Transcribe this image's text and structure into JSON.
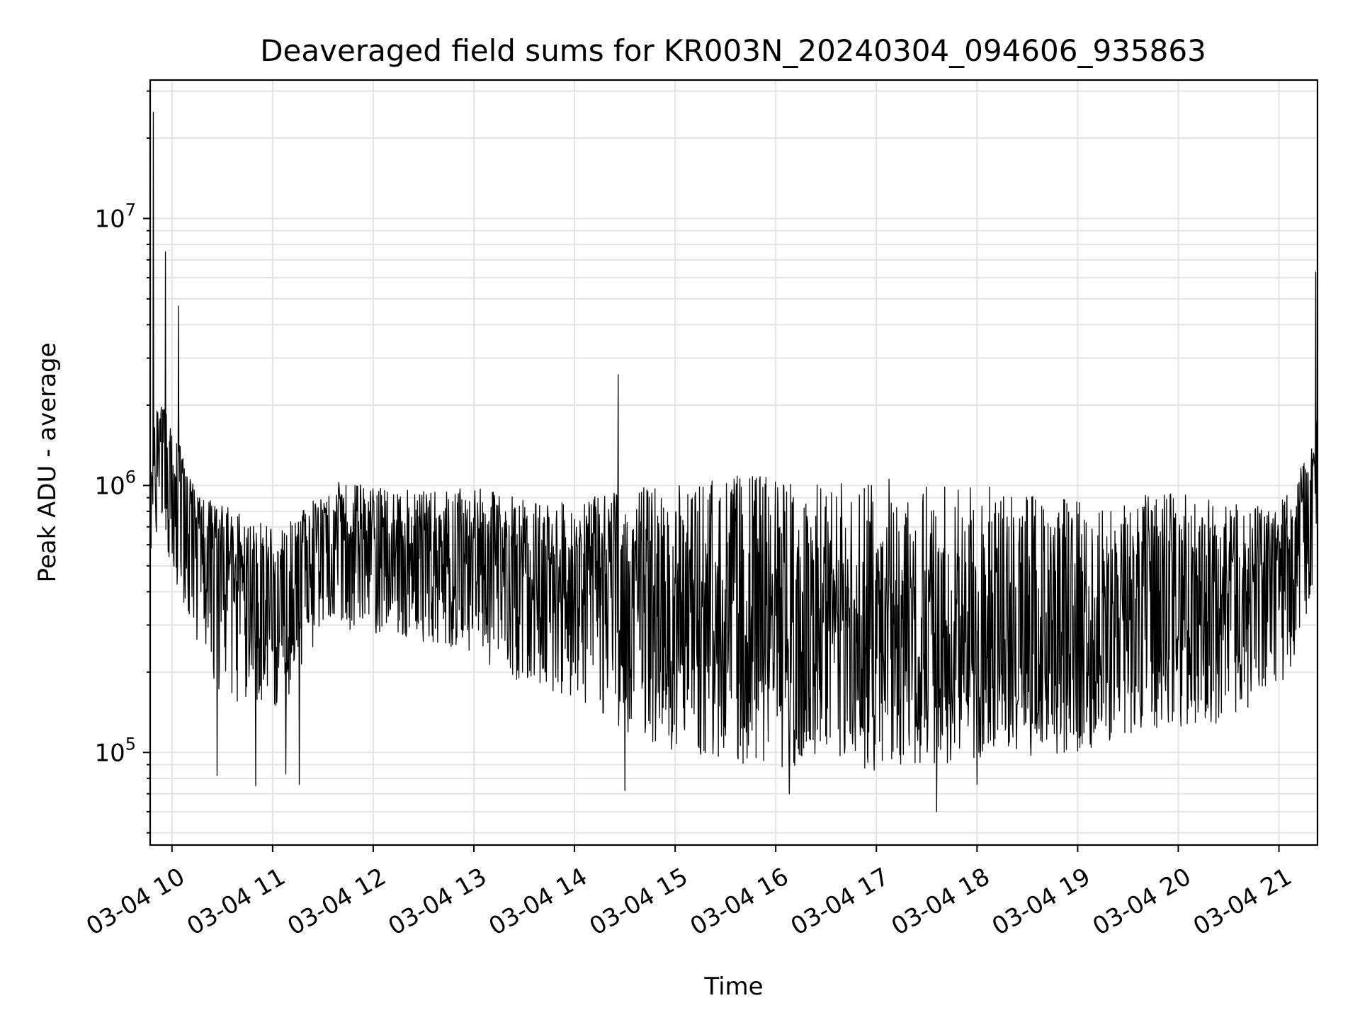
{
  "chart_data": {
    "type": "line",
    "title": "Deaveraged field sums for KR003N_20240304_094606_935863",
    "xlabel": "Time",
    "ylabel": "Peak ADU - average",
    "yscale": "log",
    "xlim": [
      "2024-03-04 09:47",
      "2024-03-04 21:23"
    ],
    "ylim": [
      45000,
      33000000
    ],
    "grid": true,
    "legend": "none",
    "line_color": "#000000",
    "x_ticks": [
      {
        "value": "2024-03-04 10:00",
        "label": "03-04 10"
      },
      {
        "value": "2024-03-04 11:00",
        "label": "03-04 11"
      },
      {
        "value": "2024-03-04 12:00",
        "label": "03-04 12"
      },
      {
        "value": "2024-03-04 13:00",
        "label": "03-04 13"
      },
      {
        "value": "2024-03-04 14:00",
        "label": "03-04 14"
      },
      {
        "value": "2024-03-04 15:00",
        "label": "03-04 15"
      },
      {
        "value": "2024-03-04 16:00",
        "label": "03-04 16"
      },
      {
        "value": "2024-03-04 17:00",
        "label": "03-04 17"
      },
      {
        "value": "2024-03-04 18:00",
        "label": "03-04 18"
      },
      {
        "value": "2024-03-04 19:00",
        "label": "03-04 19"
      },
      {
        "value": "2024-03-04 20:00",
        "label": "03-04 20"
      },
      {
        "value": "2024-03-04 21:00",
        "label": "03-04 21"
      }
    ],
    "y_ticks": [
      {
        "value": 100000,
        "mantissa": "10",
        "exponent": "5"
      },
      {
        "value": 1000000,
        "mantissa": "10",
        "exponent": "6"
      },
      {
        "value": 10000000,
        "mantissa": "10",
        "exponent": "7"
      }
    ],
    "series": [
      {
        "x": [
          "2024-03-04 09:47",
          "2024-03-04 09:50",
          "2024-03-04 09:55",
          "2024-03-04 10:00",
          "2024-03-04 10:05",
          "2024-03-04 10:10",
          "2024-03-04 10:20",
          "2024-03-04 10:30",
          "2024-03-04 10:45",
          "2024-03-04 11:00",
          "2024-03-04 11:15",
          "2024-03-04 11:30",
          "2024-03-04 12:00",
          "2024-03-04 12:30",
          "2024-03-04 13:00",
          "2024-03-04 13:30",
          "2024-03-04 14:00",
          "2024-03-04 14:30",
          "2024-03-04 15:00",
          "2024-03-04 15:30",
          "2024-03-04 16:00",
          "2024-03-04 16:30",
          "2024-03-04 17:00",
          "2024-03-04 17:30",
          "2024-03-04 18:00",
          "2024-03-04 18:30",
          "2024-03-04 19:00",
          "2024-03-04 19:30",
          "2024-03-04 20:00",
          "2024-03-04 20:30",
          "2024-03-04 21:00",
          "2024-03-04 21:10",
          "2024-03-04 21:20",
          "2024-03-04 21:23"
        ],
        "y": [
          650000,
          1300000,
          1400000,
          1000000,
          950000,
          850000,
          600000,
          550000,
          450000,
          420000,
          450000,
          700000,
          600000,
          550000,
          620000,
          520000,
          480000,
          420000,
          340000,
          300000,
          280000,
          270000,
          260000,
          250000,
          250000,
          260000,
          280000,
          320000,
          380000,
          380000,
          420000,
          700000,
          1100000,
          1300000
        ],
        "y_low": [
          500000,
          650000,
          700000,
          450000,
          350000,
          300000,
          220000,
          160000,
          150000,
          140000,
          180000,
          300000,
          280000,
          260000,
          230000,
          180000,
          160000,
          120000,
          100000,
          92000,
          88000,
          85000,
          85000,
          90000,
          92000,
          96000,
          100000,
          115000,
          125000,
          130000,
          160000,
          230000,
          380000,
          480000
        ],
        "y_high": [
          900000,
          2100000,
          2000000,
          1600000,
          1400000,
          1100000,
          900000,
          850000,
          780000,
          700000,
          750000,
          1050000,
          1000000,
          950000,
          980000,
          900000,
          850000,
          1000000,
          1000000,
          1100000,
          1100000,
          1000000,
          1100000,
          1050000,
          1000000,
          950000,
          900000,
          900000,
          950000,
          850000,
          850000,
          1050000,
          1500000,
          2000000
        ],
        "spikes": [
          {
            "x": "2024-03-04 09:49",
            "y": 25000000
          },
          {
            "x": "2024-03-04 09:56",
            "y": 7500000
          },
          {
            "x": "2024-03-04 10:04",
            "y": 4700000
          },
          {
            "x": "2024-03-04 14:26",
            "y": 2600000
          },
          {
            "x": "2024-03-04 21:22",
            "y": 6300000
          },
          {
            "x": "2024-03-04 10:27",
            "y": 82000
          },
          {
            "x": "2024-03-04 10:50",
            "y": 75000
          },
          {
            "x": "2024-03-04 11:08",
            "y": 83000
          },
          {
            "x": "2024-03-04 11:16",
            "y": 76000
          },
          {
            "x": "2024-03-04 14:30",
            "y": 72000
          },
          {
            "x": "2024-03-04 16:08",
            "y": 70000
          },
          {
            "x": "2024-03-04 17:36",
            "y": 60000
          },
          {
            "x": "2024-03-04 18:00",
            "y": 76000
          }
        ]
      }
    ]
  }
}
